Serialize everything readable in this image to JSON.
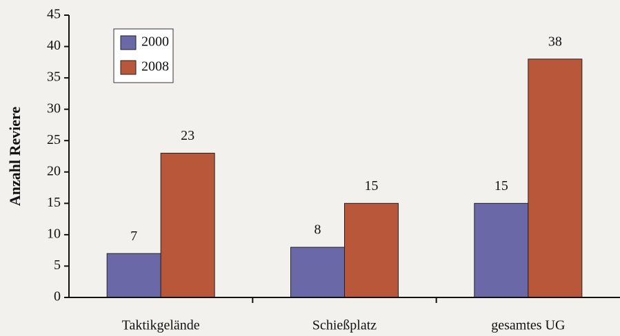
{
  "chart_data": {
    "type": "bar",
    "y_label": "Anzahl Reviere",
    "categories": [
      "Taktikgelände",
      "Schießplatz",
      "gesamtes UG"
    ],
    "series": [
      {
        "name": "2000",
        "color": "#6b68a8",
        "values": [
          7,
          8,
          15
        ]
      },
      {
        "name": "2008",
        "color": "#b9573b",
        "values": [
          23,
          15,
          38
        ]
      }
    ],
    "ylim": [
      0,
      45
    ],
    "yticks": [
      0,
      5,
      10,
      15,
      20,
      25,
      30,
      35,
      40,
      45
    ],
    "legend": "upper left",
    "value_labels_shown": true
  }
}
